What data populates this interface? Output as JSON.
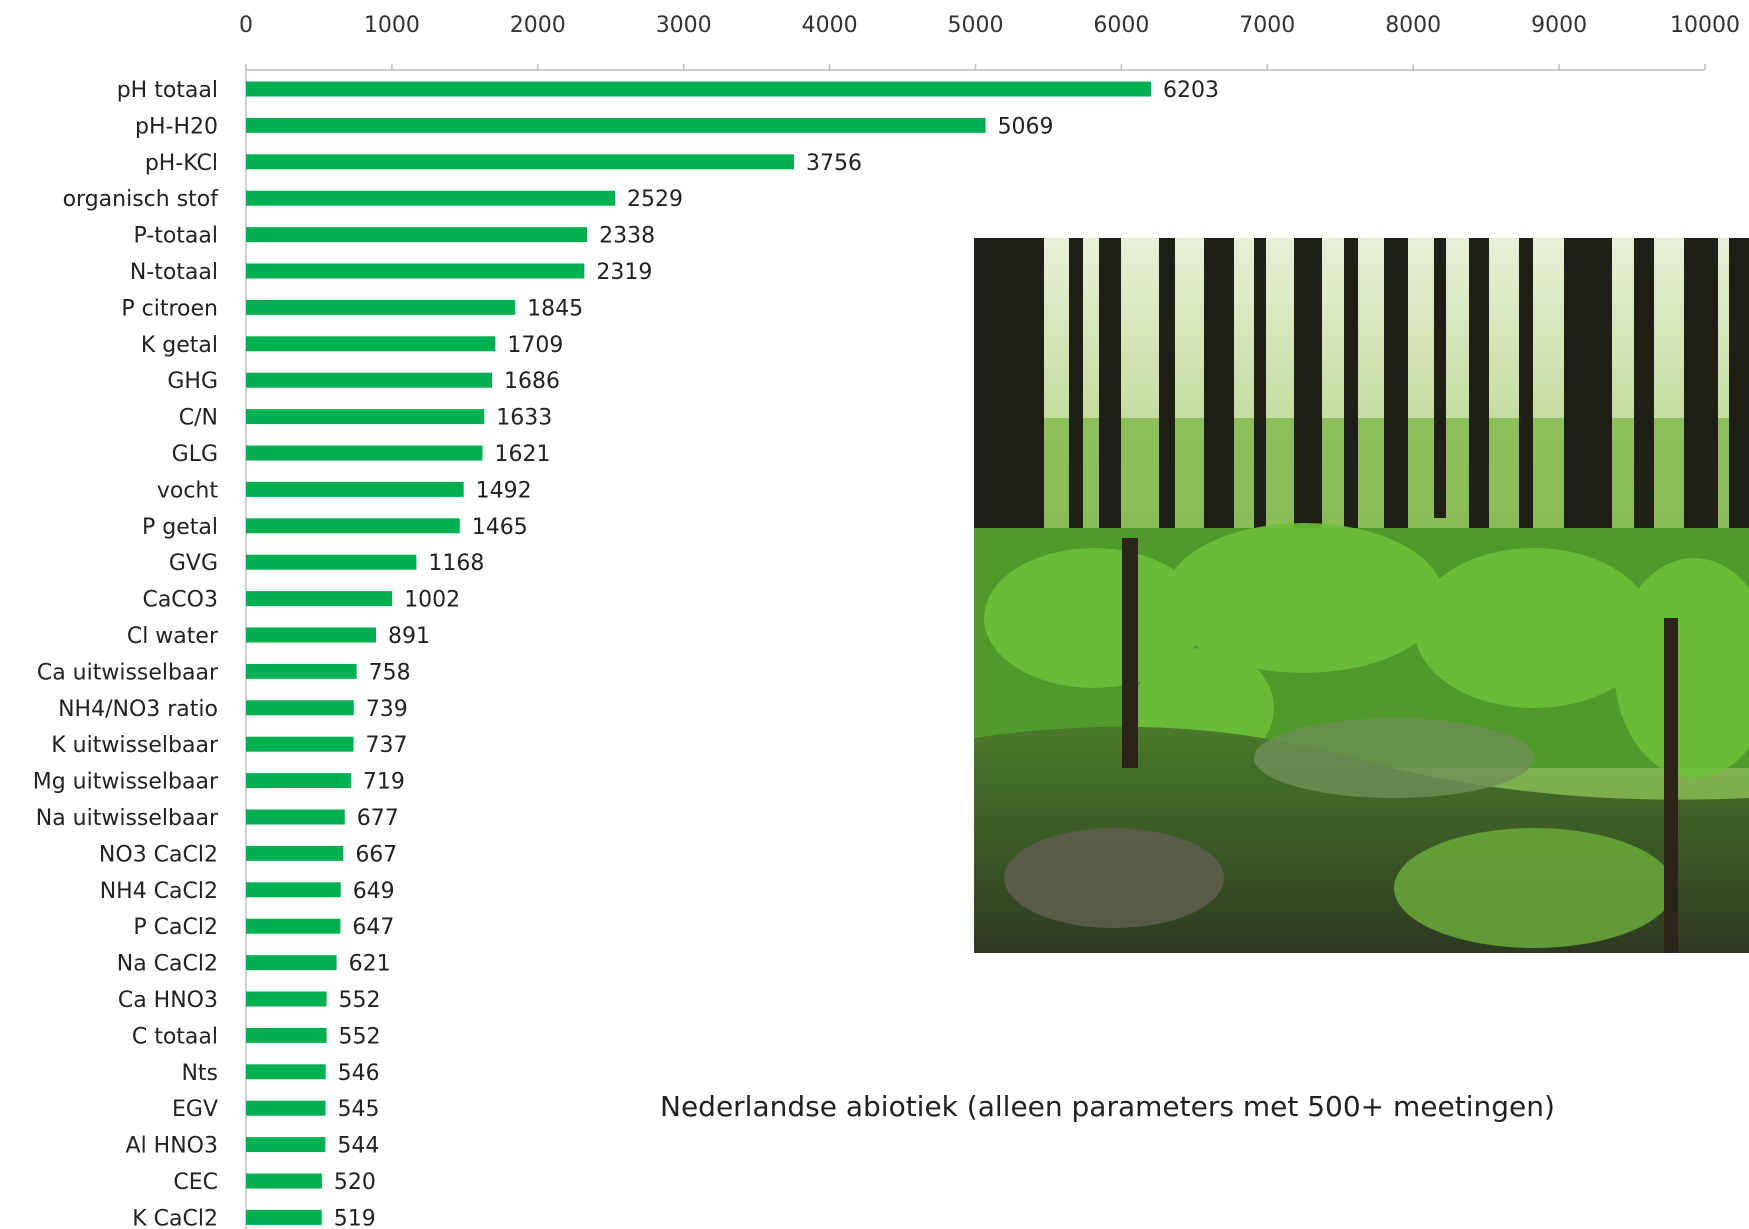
{
  "caption": "Nederlandse abiotiek (alleen parameters met 500+ meetingen)",
  "photo": {
    "subject": "wet forest with dark tree trunks, tall green sedges and a muddy pool"
  },
  "chart_data": {
    "type": "bar",
    "orientation": "horizontal",
    "xlim": [
      0,
      10000
    ],
    "x_ticks": [
      0,
      1000,
      2000,
      3000,
      4000,
      5000,
      6000,
      7000,
      8000,
      9000,
      10000
    ],
    "axis_position": "top",
    "grid": false,
    "bar_color": "#00b050",
    "categories": [
      "pH totaal",
      "pH-H20",
      "pH-KCl",
      "organisch stof",
      "P-totaal",
      "N-totaal",
      "P citroen",
      "K getal",
      "GHG",
      "C/N",
      "GLG",
      "vocht",
      "P getal",
      "GVG",
      "CaCO3",
      "Cl water",
      "Ca uitwisselbaar",
      "NH4/NO3 ratio",
      "K uitwisselbaar",
      "Mg uitwisselbaar",
      "Na uitwisselbaar",
      "NO3 CaCl2",
      "NH4 CaCl2",
      "P CaCl2",
      "Na CaCl2",
      "Ca HNO3",
      "C totaal",
      "Nts",
      "EGV",
      "Al HNO3",
      "CEC",
      "K CaCl2"
    ],
    "values": [
      6203,
      5069,
      3756,
      2529,
      2338,
      2319,
      1845,
      1709,
      1686,
      1633,
      1621,
      1492,
      1465,
      1168,
      1002,
      891,
      758,
      739,
      737,
      719,
      677,
      667,
      649,
      647,
      621,
      552,
      552,
      546,
      545,
      544,
      520,
      519
    ]
  }
}
